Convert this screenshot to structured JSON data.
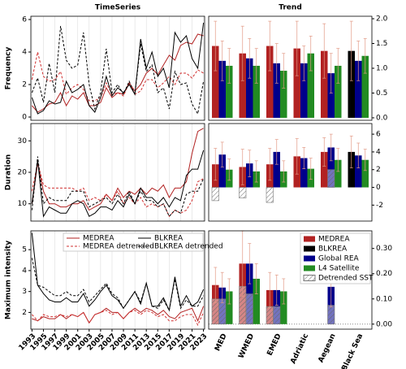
{
  "chart_data": [
    {
      "type": "line",
      "title": "TimeSeries",
      "ylabel": "Frequency",
      "x": [
        1993,
        1994,
        1995,
        1996,
        1997,
        1998,
        1999,
        2000,
        2001,
        2002,
        2003,
        2004,
        2005,
        2006,
        2007,
        2008,
        2009,
        2010,
        2011,
        2012,
        2013,
        2014,
        2015,
        2016,
        2017,
        2018,
        2019,
        2020,
        2021,
        2022,
        2023
      ],
      "xlim": [
        1992.8,
        2023.2
      ],
      "xticks": [
        1993,
        1995,
        1997,
        1999,
        2001,
        2003,
        2005,
        2007,
        2009,
        2011,
        2013,
        2015,
        2017,
        2019,
        2021,
        2023
      ],
      "ylim": [
        -0.2,
        6.2
      ],
      "yticks": [
        0,
        2,
        4,
        6
      ],
      "grid": true,
      "series": [
        {
          "color": "#b22222",
          "dash": false,
          "values": [
            0.7,
            0.3,
            0.5,
            0.8,
            0.9,
            1.5,
            0.7,
            1.3,
            1.1,
            1.5,
            0.7,
            0.7,
            0.9,
            1.8,
            1.2,
            1.5,
            1.4,
            2.1,
            1.6,
            2.0,
            2.7,
            3.0,
            2.6,
            3.2,
            3.8,
            3.5,
            4.4,
            4.6,
            4.5,
            5.1,
            5.0
          ]
        },
        {
          "color": "#d03030",
          "dash": true,
          "values": [
            2.3,
            4.0,
            2.5,
            2.2,
            2.3,
            2.8,
            1.4,
            1.8,
            2.0,
            1.7,
            1.0,
            1.0,
            1.2,
            2.1,
            1.4,
            1.5,
            1.3,
            2.1,
            1.4,
            1.6,
            2.3,
            2.3,
            1.8,
            2.1,
            2.5,
            2.0,
            2.7,
            2.7,
            2.4,
            2.9,
            2.7
          ]
        },
        {
          "color": "#000000",
          "dash": false,
          "values": [
            1.2,
            0.2,
            0.4,
            1.0,
            0.8,
            0.9,
            2.2,
            1.5,
            1.7,
            2.0,
            0.7,
            0.3,
            1.2,
            2.5,
            1.3,
            1.8,
            1.5,
            2.0,
            1.4,
            4.8,
            3.0,
            4.0,
            2.5,
            3.0,
            1.8,
            5.2,
            4.6,
            5.0,
            3.6,
            3.0,
            5.8
          ]
        },
        {
          "color": "#000000",
          "dash": true,
          "values": [
            1.5,
            2.4,
            0.9,
            3.3,
            1.5,
            5.6,
            3.5,
            3.0,
            3.2,
            5.2,
            2.0,
            0.5,
            1.5,
            4.2,
            1.5,
            2.0,
            1.4,
            2.2,
            1.4,
            4.5,
            2.8,
            3.2,
            1.5,
            1.8,
            0.5,
            2.8,
            2.0,
            2.1,
            0.8,
            0.2,
            2.2
          ]
        }
      ]
    },
    {
      "type": "line",
      "ylabel": "Duration",
      "x": [
        1993,
        1994,
        1995,
        1996,
        1997,
        1998,
        1999,
        2000,
        2001,
        2002,
        2003,
        2004,
        2005,
        2006,
        2007,
        2008,
        2009,
        2010,
        2011,
        2012,
        2013,
        2014,
        2015,
        2016,
        2017,
        2018,
        2019,
        2020,
        2021,
        2022,
        2023
      ],
      "xlim": [
        1992.8,
        2023.2
      ],
      "xticks": [
        1993,
        1995,
        1997,
        1999,
        2001,
        2003,
        2005,
        2007,
        2009,
        2011,
        2013,
        2015,
        2017,
        2019,
        2021,
        2023
      ],
      "ylim": [
        4.5,
        35.5
      ],
      "yticks": [
        10,
        20,
        30
      ],
      "grid": true,
      "series": [
        {
          "color": "#b22222",
          "dash": false,
          "values": [
            10,
            23,
            14,
            10,
            10,
            9,
            9,
            10,
            10,
            11,
            8,
            9,
            10,
            13,
            11,
            15,
            12,
            14,
            13,
            15,
            13,
            15,
            14,
            16,
            12,
            15,
            15,
            17,
            26,
            33,
            34
          ]
        },
        {
          "color": "#d03030",
          "dash": true,
          "values": [
            14,
            23,
            16,
            15,
            15,
            15,
            15,
            15,
            14,
            15,
            11,
            12,
            11,
            13,
            11,
            14,
            10,
            12,
            10,
            12,
            9,
            10,
            9,
            10,
            6,
            8,
            7,
            8,
            11,
            17,
            18
          ]
        },
        {
          "color": "#000000",
          "dash": false,
          "values": [
            10,
            24,
            6,
            9,
            8,
            7,
            7,
            10,
            11,
            10,
            6,
            7,
            9,
            9,
            8,
            11,
            9,
            13,
            10,
            15,
            12,
            12,
            10,
            12,
            9,
            12,
            11,
            19,
            21,
            21,
            27
          ]
        },
        {
          "color": "#000000",
          "dash": true,
          "values": [
            8,
            25,
            10,
            12,
            11,
            11,
            11,
            14,
            14,
            14,
            9,
            10,
            11,
            12,
            10,
            13,
            10,
            14,
            10,
            14,
            11,
            11,
            9,
            10,
            6,
            8,
            7,
            13,
            14,
            14,
            18
          ]
        }
      ]
    },
    {
      "type": "line",
      "ylabel": "Maximum intensity",
      "x": [
        1993,
        1994,
        1995,
        1996,
        1997,
        1998,
        1999,
        2000,
        2001,
        2002,
        2003,
        2004,
        2005,
        2006,
        2007,
        2008,
        2009,
        2010,
        2011,
        2012,
        2013,
        2014,
        2015,
        2016,
        2017,
        2018,
        2019,
        2020,
        2021,
        2022,
        2023
      ],
      "xlim": [
        1992.8,
        2023.2
      ],
      "xticks": [
        1993,
        1995,
        1997,
        1999,
        2001,
        2003,
        2005,
        2007,
        2009,
        2011,
        2013,
        2015,
        2017,
        2019,
        2021,
        2023
      ],
      "ylim": [
        1.2,
        5.9
      ],
      "yticks": [
        2,
        3,
        4,
        5
      ],
      "grid": true,
      "legend": "upper center",
      "series": [
        {
          "name": "MEDREA",
          "color": "#b22222",
          "dash": false,
          "values": [
            1.7,
            1.6,
            1.8,
            1.7,
            1.7,
            1.9,
            1.7,
            1.9,
            1.8,
            2.0,
            1.5,
            1.9,
            2.0,
            2.2,
            2.0,
            2.0,
            1.7,
            2.0,
            2.2,
            2.0,
            2.2,
            2.1,
            1.9,
            2.1,
            1.8,
            1.7,
            2.0,
            2.1,
            2.2,
            1.6,
            2.3
          ]
        },
        {
          "name": "MEDREA detrended",
          "color": "#d03030",
          "dash": true,
          "values": [
            1.9,
            1.6,
            1.9,
            1.8,
            1.8,
            1.9,
            1.8,
            1.9,
            1.8,
            2.0,
            1.5,
            1.9,
            2.0,
            2.1,
            1.9,
            2.0,
            1.7,
            2.0,
            2.1,
            1.9,
            2.1,
            2.0,
            1.8,
            1.9,
            1.6,
            1.6,
            1.8,
            1.9,
            1.9,
            1.4,
            2.0
          ]
        },
        {
          "name": "BLKREA",
          "color": "#000000",
          "dash": false,
          "values": [
            5.8,
            3.3,
            2.9,
            2.6,
            2.5,
            2.5,
            2.7,
            2.5,
            2.5,
            2.9,
            2.3,
            2.6,
            3.0,
            3.3,
            2.8,
            2.6,
            2.2,
            2.6,
            3.0,
            2.4,
            3.4,
            2.3,
            2.3,
            2.7,
            2.1,
            3.7,
            2.3,
            2.8,
            2.3,
            2.5,
            3.1
          ]
        },
        {
          "name": "BLKREA detrended",
          "color": "#000000",
          "dash": true,
          "values": [
            4.6,
            3.3,
            3.2,
            3.0,
            2.8,
            2.8,
            3.0,
            2.8,
            2.8,
            3.1,
            2.5,
            2.8,
            3.1,
            3.4,
            2.9,
            2.7,
            2.2,
            2.6,
            3.0,
            2.5,
            3.4,
            2.3,
            2.2,
            2.6,
            2.1,
            3.6,
            2.2,
            2.6,
            2.3,
            2.3,
            2.8
          ]
        }
      ]
    },
    {
      "type": "bar",
      "title": "Trend",
      "ylim": [
        -0.05,
        2.05
      ],
      "yticks": [
        {
          "value": 0,
          "label": "0.0"
        },
        {
          "value": 0.5,
          "label": "0.5"
        },
        {
          "value": 1,
          "label": "1.0"
        },
        {
          "value": 1.5,
          "label": "1.5"
        },
        {
          "value": 2,
          "label": "2.0"
        }
      ],
      "series": [
        {
          "color": "#b22222",
          "values": [
            1.45,
            1.3,
            1.45,
            1.4,
            1.35,
            null
          ],
          "errors": [
            0.5,
            0.55,
            0.5,
            0.55,
            0.55,
            null
          ]
        },
        {
          "color": "#000000",
          "values": [
            null,
            null,
            null,
            null,
            null,
            1.35
          ],
          "errors": [
            null,
            null,
            null,
            null,
            null,
            0.6
          ]
        },
        {
          "color": "#00008b",
          "values": [
            1.15,
            1.2,
            1.1,
            1.1,
            0.9,
            1.15
          ],
          "errors": [
            0.4,
            0.4,
            0.4,
            0.35,
            0.4,
            0.4
          ]
        },
        {
          "color": "#228b22",
          "values": [
            1.05,
            1.05,
            0.95,
            1.3,
            1.05,
            1.25
          ],
          "errors": [
            0.35,
            0.35,
            0.35,
            0.35,
            0.35,
            0.35
          ]
        },
        {
          "hatch": true,
          "values": [
            null,
            null,
            null,
            null,
            null,
            null
          ],
          "values_on_global": [
            null,
            null,
            null,
            null,
            null,
            null
          ]
        }
      ]
    },
    {
      "type": "bar",
      "ylim": [
        -3.8,
        7.2
      ],
      "yticks": [
        -2,
        0,
        2,
        4,
        6
      ],
      "series": [
        {
          "color": "#b22222",
          "values": [
            2.6,
            2.3,
            2.6,
            3.5,
            4.0,
            null
          ],
          "errors": [
            1.8,
            2.0,
            1.8,
            2.0,
            1.6,
            null
          ]
        },
        {
          "color": "#000000",
          "values": [
            null,
            null,
            null,
            null,
            null,
            4.0
          ],
          "errors": [
            null,
            null,
            null,
            null,
            null,
            1.8
          ]
        },
        {
          "color": "#00008b",
          "values": [
            3.7,
            2.7,
            4.0,
            3.3,
            4.5,
            3.6
          ],
          "errors": [
            1.4,
            1.5,
            1.4,
            1.2,
            1.5,
            1.4
          ]
        },
        {
          "color": "#228b22",
          "values": [
            2.0,
            1.8,
            1.8,
            2.1,
            3.1,
            3.1
          ],
          "errors": [
            1.2,
            1.2,
            1.2,
            1.2,
            1.3,
            1.2
          ]
        },
        {
          "hatch": true,
          "values": [
            -1.5,
            -1.2,
            -1.7,
            null,
            null,
            null
          ],
          "values_on_global": [
            null,
            null,
            null,
            null,
            2.0,
            null
          ]
        }
      ]
    },
    {
      "type": "bar",
      "ylim": [
        -0.02,
        0.37
      ],
      "yticks": [
        {
          "value": 0,
          "label": "0.00"
        },
        {
          "value": 0.1,
          "label": "0.10"
        },
        {
          "value": 0.2,
          "label": "0.20"
        },
        {
          "value": 0.3,
          "label": "0.30"
        }
      ],
      "legend": "upper right",
      "categories": [
        "MED",
        "WMED",
        "EMED",
        "Adriatic",
        "Aegean",
        "Black Sea"
      ],
      "series": [
        {
          "name": "MEDREA",
          "color": "#b22222",
          "values": [
            0.155,
            0.24,
            0.135,
            null,
            null,
            null
          ],
          "errors": [
            0.07,
            0.13,
            0.07,
            null,
            null,
            null
          ]
        },
        {
          "name": "BLKREA",
          "color": "#000000",
          "values": [
            null,
            null,
            null,
            null,
            null,
            null
          ],
          "errors": [
            null,
            null,
            null,
            null,
            null,
            null
          ]
        },
        {
          "name": "Global REA",
          "color": "#00008b",
          "values": [
            0.145,
            0.24,
            0.135,
            null,
            0.148,
            null
          ],
          "errors": [
            0.06,
            0.08,
            0.06,
            null,
            0.08,
            null
          ]
        },
        {
          "name": "L4 Satellite",
          "color": "#228b22",
          "values": [
            0.13,
            0.18,
            0.13,
            null,
            null,
            null
          ],
          "errors": [
            0.05,
            0.06,
            0.05,
            null,
            null,
            null
          ]
        },
        {
          "name": "Detrended SST",
          "hatch": true,
          "values": [
            0.1,
            0.15,
            0.07,
            null,
            null,
            null
          ],
          "values_on_global": [
            0.1,
            0.12,
            0.07,
            null,
            0.075,
            null
          ]
        }
      ]
    }
  ]
}
